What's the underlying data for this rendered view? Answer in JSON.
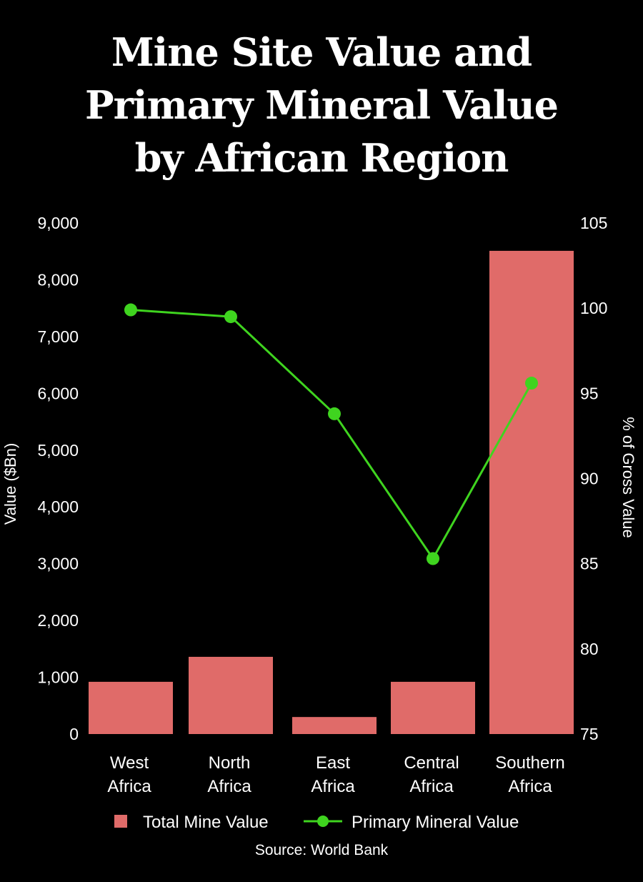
{
  "title_lines": [
    "Mine Site Value and",
    "Primary Mineral Value",
    "by African Region"
  ],
  "source": "Source: World Bank",
  "colors": {
    "background": "#000000",
    "bar": "#e06b69",
    "line": "#3fd41f",
    "text": "#ffffff"
  },
  "chart_data": {
    "type": "bar+line",
    "title": "Mine Site Value and Primary Mineral Value by African Region",
    "categories": [
      "West Africa",
      "North Africa",
      "East Africa",
      "Central Africa",
      "Southern Africa"
    ],
    "category_lines": [
      [
        "West",
        "Africa"
      ],
      [
        "North",
        "Africa"
      ],
      [
        "East",
        "Africa"
      ],
      [
        "Central",
        "Africa"
      ],
      [
        "Southern",
        "Africa"
      ]
    ],
    "series": [
      {
        "name": "Total Mine Value",
        "type": "bar",
        "axis": "left",
        "color": "#e06b69",
        "values": [
          920,
          1360,
          300,
          920,
          8510
        ]
      },
      {
        "name": "Primary Mineral Value",
        "type": "line",
        "axis": "right",
        "color": "#3fd41f",
        "values": [
          99.9,
          99.5,
          93.8,
          85.3,
          95.6
        ]
      }
    ],
    "ylabel": "Value ($Bn)",
    "ylim": [
      0,
      9000
    ],
    "yticks": [
      0,
      1000,
      2000,
      3000,
      4000,
      5000,
      6000,
      7000,
      8000,
      9000
    ],
    "ytick_labels": [
      "0",
      "1,000",
      "2,000",
      "3,000",
      "4,000",
      "5,000",
      "6,000",
      "7,000",
      "8,000",
      "9,000"
    ],
    "y2label": "% of Gross Value",
    "y2lim": [
      75,
      105
    ],
    "y2ticks": [
      75,
      80,
      85,
      90,
      95,
      100,
      105
    ],
    "y2tick_labels": [
      "75",
      "80",
      "85",
      "90",
      "95",
      "100",
      "105"
    ],
    "grid": false,
    "legend_position": "bottom"
  }
}
